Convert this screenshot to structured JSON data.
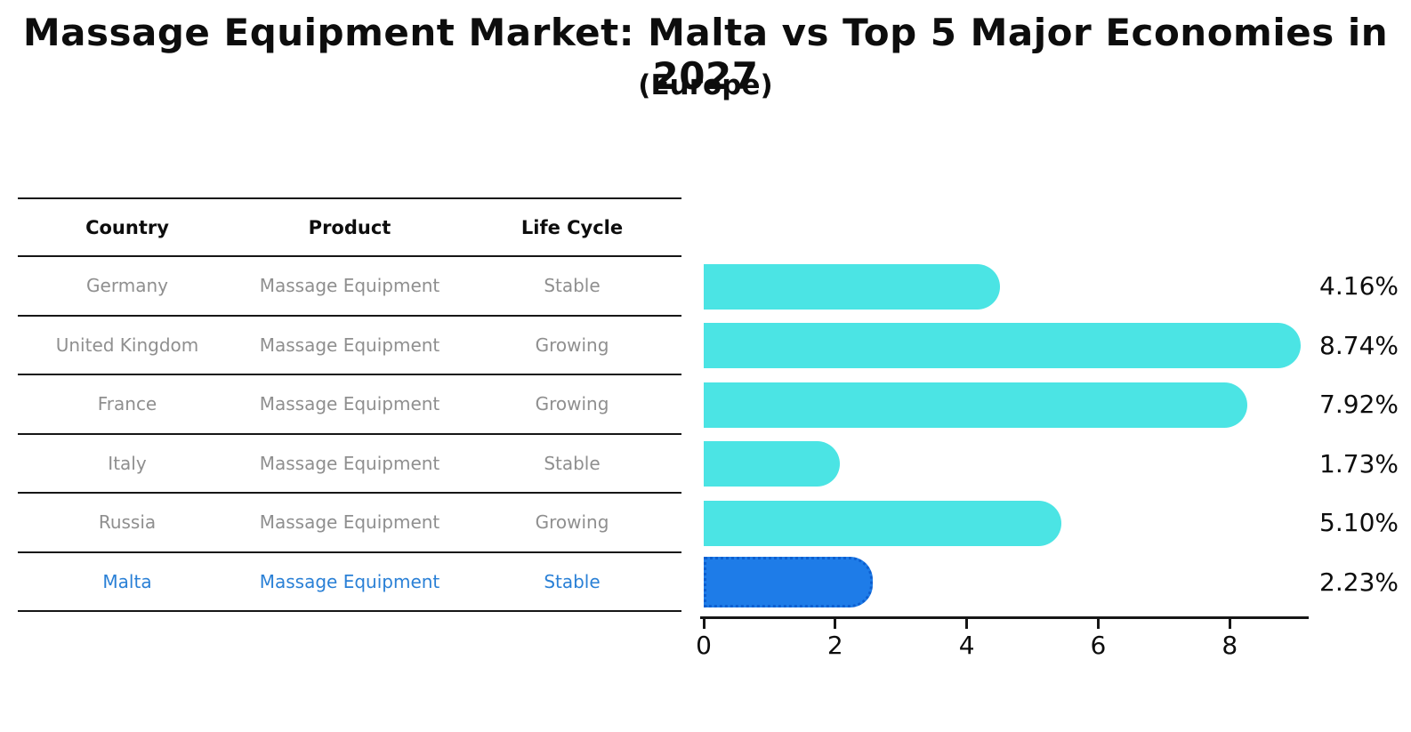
{
  "title": "Massage Equipment Market: Malta vs Top 5 Major Economies in 2027",
  "subtitle": "(Europe)",
  "table": {
    "headers": [
      "Country",
      "Product",
      "Life Cycle"
    ],
    "rows": [
      {
        "country": "Germany",
        "product": "Massage Equipment",
        "life_cycle": "Stable",
        "highlight": false
      },
      {
        "country": "United Kingdom",
        "product": "Massage Equipment",
        "life_cycle": "Growing",
        "highlight": false
      },
      {
        "country": "France",
        "product": "Massage Equipment",
        "life_cycle": "Growing",
        "highlight": false
      },
      {
        "country": "Italy",
        "product": "Massage Equipment",
        "life_cycle": "Stable",
        "highlight": false
      },
      {
        "country": "Russia",
        "product": "Massage Equipment",
        "life_cycle": "Growing",
        "highlight": false
      },
      {
        "country": "Malta",
        "product": "Massage Equipment",
        "life_cycle": "Stable",
        "highlight": true
      }
    ]
  },
  "chart_data": {
    "type": "bar",
    "orientation": "horizontal",
    "title": "Massage Equipment Market: Malta vs Top 5 Major Economies in 2027",
    "subtitle": "(Europe)",
    "categories": [
      "Germany",
      "United Kingdom",
      "France",
      "Italy",
      "Russia",
      "Malta"
    ],
    "values": [
      4.16,
      8.74,
      7.92,
      1.73,
      5.1,
      2.23
    ],
    "value_labels": [
      "4.16%",
      "8.74%",
      "7.92%",
      "1.73%",
      "5.10%",
      "2.23%"
    ],
    "xticks": [
      0,
      2,
      4,
      6,
      8
    ],
    "xlim": [
      0,
      9.16
    ],
    "grid": false,
    "legend": false,
    "bar_color": "#4be4e4",
    "highlight_color": "#1e7ce8",
    "highlight_index": 5,
    "highlight_text_color": "#2a80d6"
  }
}
